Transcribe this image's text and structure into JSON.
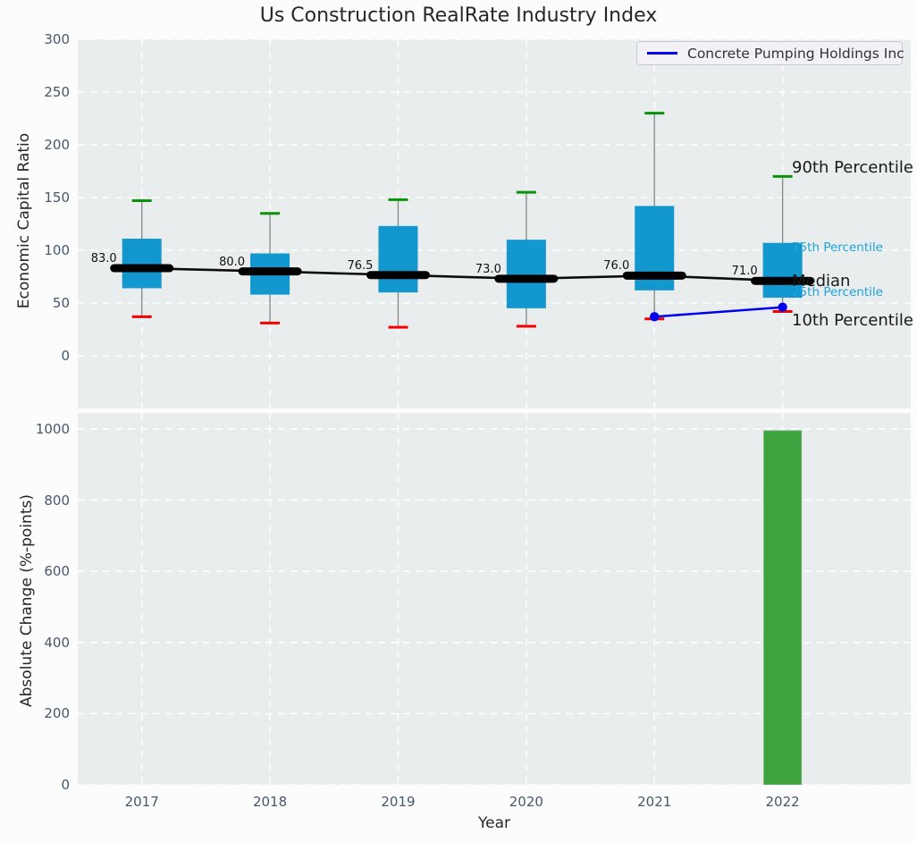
{
  "title": "Us Construction RealRate Industry Index",
  "legend": {
    "label": "Concrete Pumping Holdings Inc",
    "line_color": "#0000ee"
  },
  "colors": {
    "axes_bg": "#e9edee",
    "grid": "#ffffff",
    "box_fill": "#1297ce",
    "whisker": "#8c8c8c",
    "p90_cap": "#0a930a",
    "p10_cap": "#f40000",
    "median_line": "#000000",
    "company_line": "#0000ee",
    "bar_fill": "#3ea23e",
    "tick_text": "#46586d",
    "percentile_text_blue": "#1ba3da"
  },
  "chart_data": [
    {
      "type": "box",
      "ylabel": "Economic Capital Ratio",
      "ylim": [
        -50,
        300
      ],
      "yticks": [
        0,
        50,
        100,
        150,
        200,
        250,
        300
      ],
      "categories": [
        "2017",
        "2018",
        "2019",
        "2020",
        "2021",
        "2022"
      ],
      "boxes": [
        {
          "year": "2017",
          "p10": 37,
          "p25": 64,
          "median": 83.0,
          "p75": 111,
          "p90": 147
        },
        {
          "year": "2018",
          "p10": 31,
          "p25": 58,
          "median": 80.0,
          "p75": 97,
          "p90": 135
        },
        {
          "year": "2019",
          "p10": 27,
          "p25": 60,
          "median": 76.5,
          "p75": 123,
          "p90": 148
        },
        {
          "year": "2020",
          "p10": 28,
          "p25": 45,
          "median": 73.0,
          "p75": 110,
          "p90": 155
        },
        {
          "year": "2021",
          "p10": 35,
          "p25": 62,
          "median": 76.0,
          "p75": 142,
          "p90": 230
        },
        {
          "year": "2022",
          "p10": 42,
          "p25": 55,
          "median": 71.0,
          "p75": 107,
          "p90": 170
        }
      ],
      "series": [
        {
          "name": "Concrete Pumping Holdings Inc",
          "x": [
            "2021",
            "2022"
          ],
          "values": [
            37,
            46
          ]
        }
      ],
      "annotations": [
        {
          "label": "90th Percentile",
          "value": 178,
          "style": "big",
          "color": "#1a1a1a"
        },
        {
          "label": "75th Percentile",
          "value": 102,
          "style": "small",
          "color": "#1ba3da"
        },
        {
          "label": "Median",
          "value": 70,
          "style": "big",
          "color": "#1a1a1a"
        },
        {
          "label": "25th Percentile",
          "value": 59,
          "style": "small",
          "color": "#1ba3da"
        },
        {
          "label": "10th Percentile",
          "value": 33,
          "style": "big",
          "color": "#1a1a1a"
        }
      ],
      "legend_position": "upper right",
      "grid": "white dashed"
    },
    {
      "type": "bar",
      "ylabel": "Absolute Change (%-points)",
      "xlabel": "Year",
      "ylim": [
        0,
        1045
      ],
      "yticks": [
        0,
        200,
        400,
        600,
        800,
        1000
      ],
      "categories": [
        "2017",
        "2018",
        "2019",
        "2020",
        "2021",
        "2022"
      ],
      "values": [
        null,
        null,
        null,
        null,
        null,
        995
      ],
      "grid": "white dashed"
    }
  ]
}
